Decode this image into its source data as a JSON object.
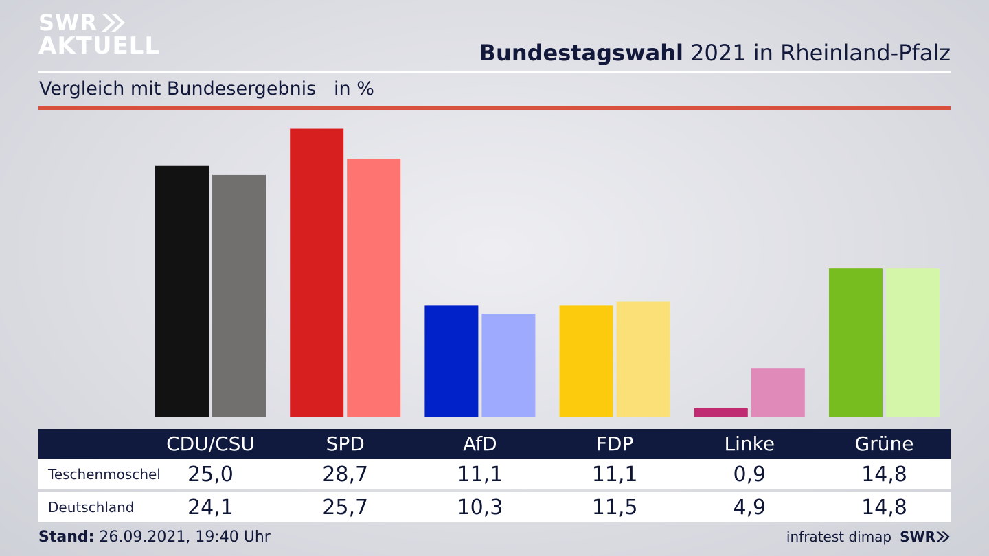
{
  "logo": {
    "line1": "SWR",
    "line2": "AKTUELL"
  },
  "header": {
    "title_bold": "Bundestagswahl",
    "title_rest": " 2021 in Rheinland-Pfalz",
    "subtitle": "Vergleich mit Bundesergebnis",
    "unit": "in %"
  },
  "chart_data": {
    "type": "bar",
    "categories": [
      "CDU/CSU",
      "SPD",
      "AfD",
      "FDP",
      "Linke",
      "Grüne"
    ],
    "series": [
      {
        "name": "Teschenmoschel",
        "values": [
          25.0,
          28.7,
          11.1,
          11.1,
          0.9,
          14.8
        ],
        "colors": [
          "#121212",
          "#d71f1f",
          "#0022c8",
          "#fdcb0e",
          "#c02c72",
          "#78bd20"
        ]
      },
      {
        "name": "Deutschland",
        "values": [
          24.1,
          25.7,
          10.3,
          11.5,
          4.9,
          14.8
        ],
        "colors": [
          "#71706e",
          "#fe7470",
          "#9eaafe",
          "#fbe077",
          "#df8ab8",
          "#d4f6a8"
        ]
      }
    ],
    "ylim": [
      0,
      30
    ],
    "grid": false
  },
  "table": {
    "headers": [
      "CDU/CSU",
      "SPD",
      "AfD",
      "FDP",
      "Linke",
      "Grüne"
    ],
    "rows": [
      {
        "label": "Teschenmoschel",
        "values": [
          "25,0",
          "28,7",
          "11,1",
          "11,1",
          "0,9",
          "14,8"
        ]
      },
      {
        "label": "Deutschland",
        "values": [
          "24,1",
          "25,7",
          "10,3",
          "11,5",
          "4,9",
          "14,8"
        ]
      }
    ]
  },
  "footer": {
    "stand_label": "Stand:",
    "stand_value": " 26.09.2021, 19:40 Uhr",
    "source": "infratest dimap",
    "brand": "SWR"
  }
}
